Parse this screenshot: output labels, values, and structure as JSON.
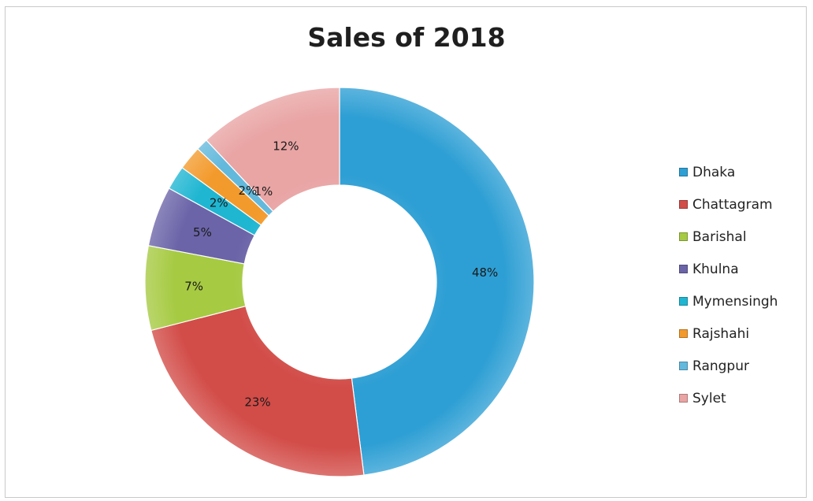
{
  "chart_data": {
    "type": "pie",
    "variant": "donut",
    "title": "Sales of 2018",
    "categories": [
      "Dhaka",
      "Chattagram",
      "Barishal",
      "Khulna",
      "Mymensingh",
      "Rajshahi",
      "Rangpur",
      "Sylet"
    ],
    "values": [
      48,
      23,
      7,
      5,
      2,
      2,
      1,
      12
    ],
    "data_labels": [
      "48%",
      "23%",
      "7%",
      "5%",
      "2%",
      "2%",
      "1%",
      "12%"
    ],
    "unit": "%",
    "colors": [
      "#2e9fd4",
      "#d24c48",
      "#a6ca42",
      "#6b64a8",
      "#1fb6d2",
      "#f39a2c",
      "#63b9dc",
      "#e9a4a4"
    ],
    "legend_position": "right"
  }
}
